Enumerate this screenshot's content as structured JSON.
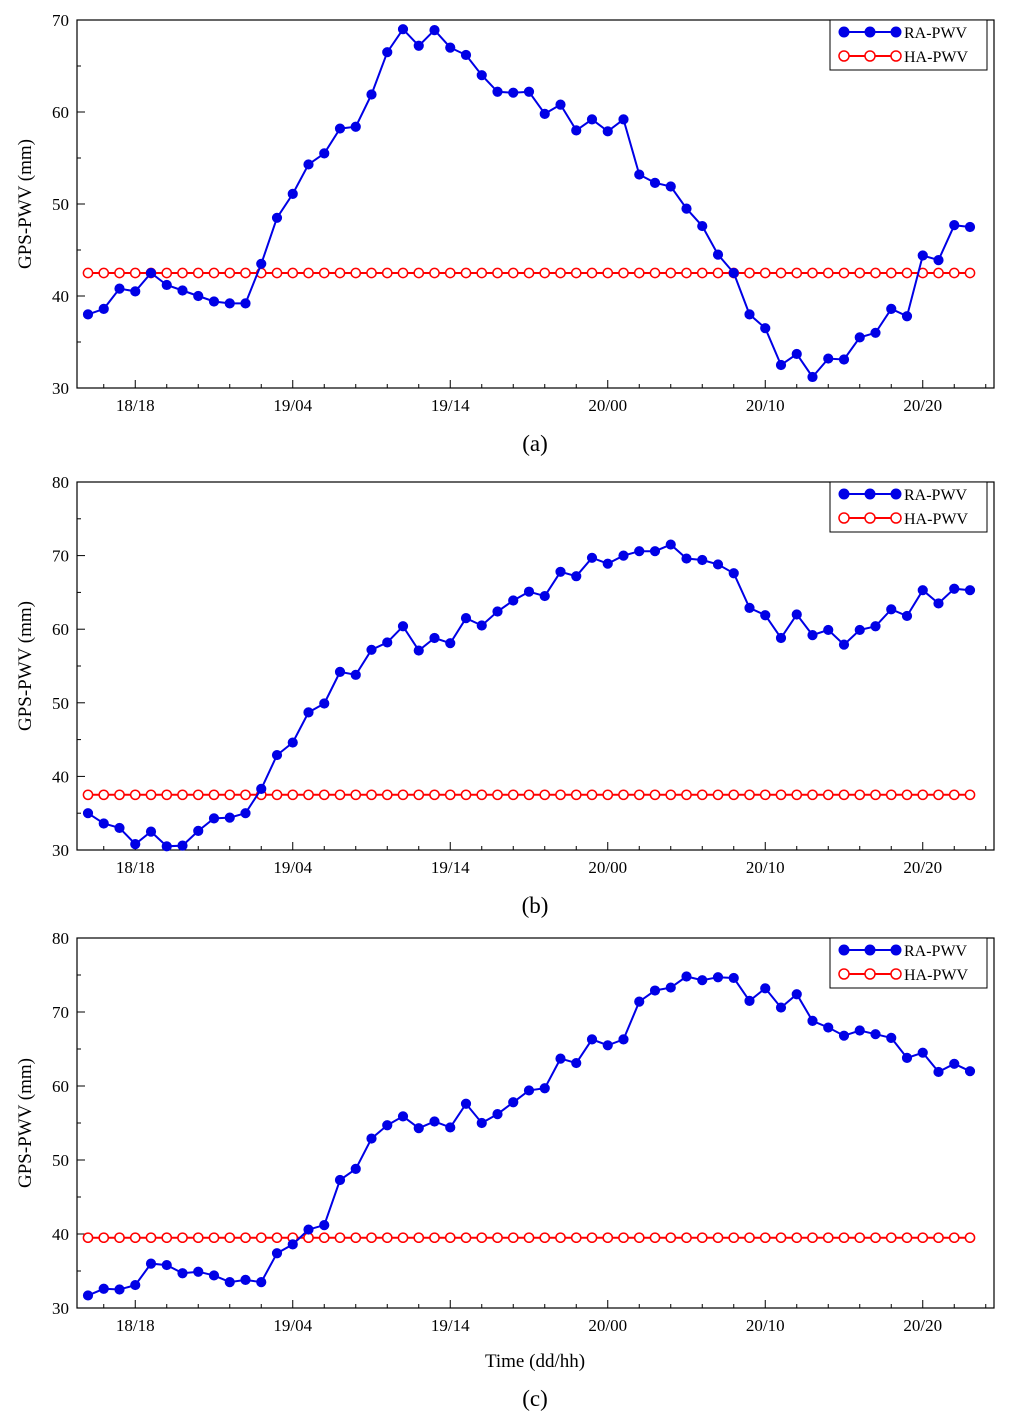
{
  "chart_data": [
    {
      "type": "line",
      "caption": "(a)",
      "ylabel": "GPS-PWV (mm)",
      "xlabel": "",
      "ylim": [
        30,
        70
      ],
      "yticks": [
        30,
        40,
        50,
        60,
        70
      ],
      "xlim": [
        0,
        58
      ],
      "x_tick_positions": [
        3,
        13,
        23,
        33,
        43,
        53
      ],
      "x_tick_labels": [
        "18/18",
        "19/04",
        "19/14",
        "20/00",
        "20/10",
        "20/20"
      ],
      "legend_position": "top-right",
      "series": [
        {
          "name": "RA-PWV",
          "color": "#0000e6",
          "marker": "filled-circle",
          "values": [
            38.0,
            38.6,
            40.8,
            40.5,
            42.5,
            41.2,
            40.6,
            40.0,
            39.4,
            39.2,
            39.2,
            43.5,
            48.5,
            51.1,
            54.3,
            55.5,
            58.2,
            58.4,
            61.9,
            66.5,
            69.0,
            67.2,
            68.9,
            67.0,
            66.2,
            64.0,
            62.2,
            62.1,
            62.2,
            59.8,
            60.8,
            58.0,
            59.2,
            57.9,
            59.2,
            53.2,
            52.3,
            51.9,
            49.5,
            47.6,
            44.5,
            42.5,
            38.0,
            36.5,
            32.5,
            33.7,
            31.2,
            33.2,
            33.1,
            35.5,
            36.0,
            38.6,
            37.8,
            44.4,
            43.9,
            47.7,
            47.5
          ]
        },
        {
          "name": "HA-PWV",
          "color": "#ff0000",
          "marker": "open-circle",
          "constant": 42.5
        }
      ]
    },
    {
      "type": "line",
      "caption": "(b)",
      "ylabel": "GPS-PWV (mm)",
      "xlabel": "",
      "ylim": [
        30,
        80
      ],
      "yticks": [
        30,
        40,
        50,
        60,
        70,
        80
      ],
      "xlim": [
        0,
        58
      ],
      "x_tick_positions": [
        3,
        13,
        23,
        33,
        43,
        53
      ],
      "x_tick_labels": [
        "18/18",
        "19/04",
        "19/14",
        "20/00",
        "20/10",
        "20/20"
      ],
      "legend_position": "top-right",
      "series": [
        {
          "name": "RA-PWV",
          "color": "#0000e6",
          "marker": "filled-circle",
          "values": [
            35.0,
            33.6,
            33.0,
            30.8,
            32.5,
            30.5,
            30.6,
            32.6,
            34.3,
            34.4,
            35.0,
            38.3,
            42.9,
            44.6,
            48.7,
            49.9,
            54.2,
            53.8,
            57.2,
            58.2,
            60.4,
            57.1,
            58.8,
            58.1,
            61.5,
            60.5,
            62.4,
            63.9,
            65.1,
            64.5,
            67.8,
            67.2,
            69.7,
            68.9,
            70.0,
            70.6,
            70.6,
            71.5,
            69.6,
            69.4,
            68.8,
            67.6,
            62.9,
            61.9,
            58.8,
            62.0,
            59.2,
            59.9,
            57.9,
            59.9,
            60.4,
            62.7,
            61.8,
            65.3,
            63.5,
            65.5,
            65.3
          ]
        },
        {
          "name": "HA-PWV",
          "color": "#ff0000",
          "marker": "open-circle",
          "constant": 37.5
        }
      ]
    },
    {
      "type": "line",
      "caption": "(c)",
      "ylabel": "GPS-PWV (mm)",
      "xlabel": "Time (dd/hh)",
      "ylim": [
        30,
        80
      ],
      "yticks": [
        30,
        40,
        50,
        60,
        70,
        80
      ],
      "xlim": [
        0,
        58
      ],
      "x_tick_positions": [
        3,
        13,
        23,
        33,
        43,
        53
      ],
      "x_tick_labels": [
        "18/18",
        "19/04",
        "19/14",
        "20/00",
        "20/10",
        "20/20"
      ],
      "legend_position": "top-right",
      "series": [
        {
          "name": "RA-PWV",
          "color": "#0000e6",
          "marker": "filled-circle",
          "values": [
            31.7,
            32.6,
            32.5,
            33.1,
            36.0,
            35.8,
            34.7,
            34.9,
            34.4,
            33.5,
            33.8,
            33.5,
            37.4,
            38.6,
            40.6,
            41.2,
            47.3,
            48.8,
            52.9,
            54.7,
            55.9,
            54.3,
            55.2,
            54.4,
            57.6,
            55.0,
            56.2,
            57.8,
            59.4,
            59.7,
            63.7,
            63.1,
            66.3,
            65.5,
            66.3,
            71.4,
            72.9,
            73.3,
            74.8,
            74.3,
            74.7,
            74.6,
            71.5,
            73.2,
            70.6,
            72.4,
            68.8,
            67.9,
            66.8,
            67.5,
            67.0,
            66.5,
            63.8,
            64.5,
            61.9,
            63.0,
            62.0
          ]
        },
        {
          "name": "HA-PWV",
          "color": "#ff0000",
          "marker": "open-circle",
          "constant": 39.5
        }
      ]
    }
  ]
}
